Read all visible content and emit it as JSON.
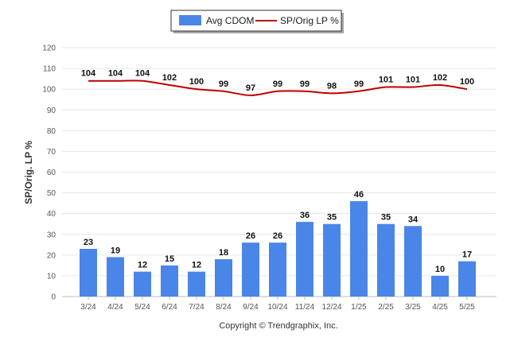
{
  "colors": {
    "bar": "#4a86e8",
    "line": "#c00000",
    "grid": "#e6e6e6",
    "axis": "#bbbbbb"
  },
  "footer": "Copyright © Trendgraphix, Inc.",
  "chart_data": {
    "type": "bar",
    "categories": [
      "3/24",
      "4/24",
      "5/24",
      "6/24",
      "7/24",
      "8/24",
      "9/24",
      "10/24",
      "11/24",
      "12/24",
      "1/25",
      "2/25",
      "3/25",
      "4/25",
      "5/25"
    ],
    "series": [
      {
        "name": "Avg CDOM",
        "type": "bar",
        "values": [
          23,
          19,
          12,
          15,
          12,
          18,
          26,
          26,
          36,
          35,
          46,
          35,
          34,
          10,
          17
        ]
      },
      {
        "name": "SP/Orig LP %",
        "type": "line",
        "values": [
          104,
          104,
          104,
          102,
          100,
          99,
          97,
          99,
          99,
          98,
          99,
          101,
          101,
          102,
          100
        ]
      }
    ],
    "ylabel": "SP/Orig. LP %",
    "xlabel": "",
    "ylim": [
      0,
      120
    ],
    "yticks": [
      0,
      10,
      20,
      30,
      40,
      50,
      60,
      70,
      80,
      90,
      100,
      110,
      120
    ],
    "grid": true,
    "legend": "top-center"
  }
}
